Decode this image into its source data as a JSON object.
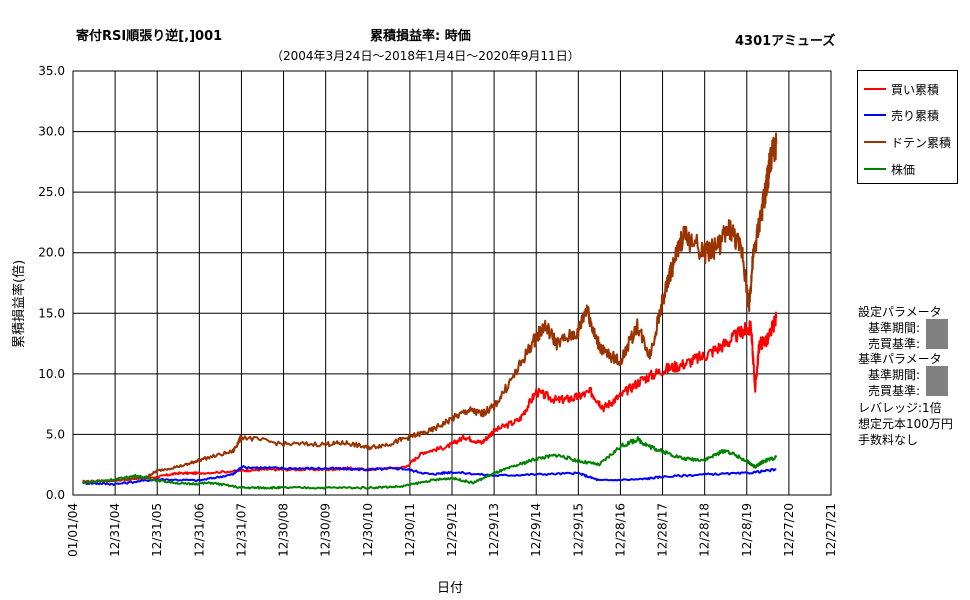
{
  "header": {
    "title_left": "寄付RSI順張り逆[,]001",
    "title_center": "累積損益率:  時価",
    "title_right": "4301アミューズ",
    "subtitle": "（2004年3月24日～2018年1月4日～2020年9月11日）"
  },
  "params": {
    "set_title": "設定パラメータ",
    "set_period": "基準期間:",
    "set_trade": "売買基準:",
    "base_title": "基準パラメータ",
    "base_period": "基準期間:",
    "base_trade": "売買基準:",
    "leverage": "レバレッジ:1倍",
    "capital": "想定元本100万円",
    "fee": "手数料なし"
  },
  "colors": {
    "buy": "#ff0000",
    "sell": "#0000ff",
    "doten": "#993300",
    "price": "#008000",
    "grid": "#000000"
  },
  "chart_data": {
    "type": "line",
    "title": "累積損益率:  時価",
    "xlabel": "日付",
    "ylabel": "累積損益率(倍)",
    "ylim": [
      0,
      35
    ],
    "yticks": [
      "0.0",
      "5.0",
      "10.0",
      "15.0",
      "20.0",
      "25.0",
      "30.0",
      "35.0"
    ],
    "xticks": [
      "01/01/04",
      "12/31/04",
      "12/31/05",
      "12/31/06",
      "12/31/07",
      "12/30/08",
      "12/30/09",
      "12/30/10",
      "12/30/11",
      "12/29/12",
      "12/29/13",
      "12/29/14",
      "12/29/15",
      "12/28/16",
      "12/28/17",
      "12/28/18",
      "12/28/19",
      "12/27/20",
      "12/27/21"
    ],
    "xlim": [
      2004.0,
      2022.0
    ],
    "grid": true,
    "legend_position": "right",
    "series": [
      {
        "name": "買い累積",
        "color_key": "buy",
        "x": [
          2004.23,
          2005.0,
          2006.0,
          2006.5,
          2007.0,
          2008.0,
          2008.5,
          2009.0,
          2010.0,
          2010.5,
          2011.0,
          2011.9,
          2012.3,
          2012.9,
          2013.3,
          2013.7,
          2014.0,
          2014.6,
          2015.0,
          2015.5,
          2015.9,
          2016.3,
          2016.6,
          2017.0,
          2017.5,
          2018.0,
          2018.5,
          2019.0,
          2019.5,
          2019.9,
          2020.1,
          2020.2,
          2020.3,
          2020.5,
          2020.7
        ],
        "y": [
          1.1,
          1.2,
          1.5,
          1.8,
          1.8,
          2.0,
          2.1,
          2.1,
          2.1,
          2.2,
          2.1,
          2.3,
          3.5,
          4.0,
          4.8,
          4.3,
          5.3,
          6.2,
          8.5,
          7.8,
          8.0,
          8.5,
          7.2,
          8.2,
          9.5,
          10.3,
          10.8,
          11.5,
          12.5,
          13.5,
          13.8,
          8.8,
          12.5,
          12.8,
          14.6
        ]
      },
      {
        "name": "売り累積",
        "color_key": "sell",
        "x": [
          2004.23,
          2005.0,
          2006.0,
          2007.0,
          2007.8,
          2008.0,
          2009.0,
          2010.0,
          2011.0,
          2011.8,
          2012.5,
          2013.0,
          2014.0,
          2015.0,
          2016.0,
          2016.5,
          2017.5,
          2018.0,
          2019.0,
          2020.0,
          2020.7
        ],
        "y": [
          1.0,
          0.9,
          1.3,
          1.2,
          1.7,
          2.3,
          2.2,
          2.2,
          2.1,
          2.2,
          1.7,
          1.9,
          1.6,
          1.7,
          1.8,
          1.2,
          1.3,
          1.5,
          1.7,
          1.8,
          2.1
        ]
      },
      {
        "name": "ドテン累積",
        "color_key": "doten",
        "x": [
          2004.23,
          2005.0,
          2005.7,
          2006.0,
          2006.7,
          2007.0,
          2007.8,
          2008.0,
          2009.0,
          2010.0,
          2010.5,
          2011.0,
          2011.5,
          2012.0,
          2012.5,
          2013.0,
          2013.4,
          2013.7,
          2014.0,
          2014.5,
          2014.9,
          2015.2,
          2015.5,
          2016.0,
          2016.2,
          2016.4,
          2016.6,
          2017.0,
          2017.4,
          2017.7,
          2018.0,
          2018.2,
          2018.5,
          2019.0,
          2019.3,
          2019.6,
          2019.9,
          2020.05,
          2020.15,
          2020.3,
          2020.45,
          2020.55,
          2020.7
        ],
        "y": [
          1.1,
          1.2,
          1.4,
          2.0,
          2.5,
          2.9,
          3.6,
          4.8,
          4.2,
          4.2,
          4.3,
          3.9,
          4.2,
          4.8,
          5.3,
          6.3,
          7.0,
          6.7,
          7.3,
          10.0,
          12.5,
          14.0,
          12.5,
          13.5,
          15.5,
          13.0,
          11.8,
          11.0,
          14.0,
          11.5,
          16.0,
          18.5,
          21.5,
          20.0,
          20.5,
          22.0,
          20.0,
          15.5,
          19.5,
          22.5,
          25.0,
          27.5,
          29.0
        ]
      },
      {
        "name": "株価",
        "color_key": "price",
        "x": [
          2004.23,
          2005.0,
          2005.5,
          2006.0,
          2006.7,
          2007.3,
          2008.0,
          2008.5,
          2009.0,
          2010.0,
          2011.0,
          2011.8,
          2012.5,
          2013.0,
          2013.5,
          2014.0,
          2014.5,
          2015.0,
          2015.5,
          2016.0,
          2016.5,
          2017.0,
          2017.4,
          2017.7,
          2018.0,
          2018.5,
          2019.0,
          2019.5,
          2020.0,
          2020.2,
          2020.4,
          2020.7
        ],
        "y": [
          1.0,
          1.3,
          1.6,
          1.2,
          0.9,
          1.0,
          0.6,
          0.6,
          0.6,
          0.6,
          0.6,
          0.7,
          1.2,
          1.4,
          1.0,
          1.8,
          2.4,
          3.0,
          3.3,
          2.8,
          2.5,
          4.0,
          4.6,
          4.0,
          3.6,
          3.0,
          2.9,
          3.7,
          2.8,
          2.3,
          2.8,
          3.1
        ]
      }
    ]
  }
}
